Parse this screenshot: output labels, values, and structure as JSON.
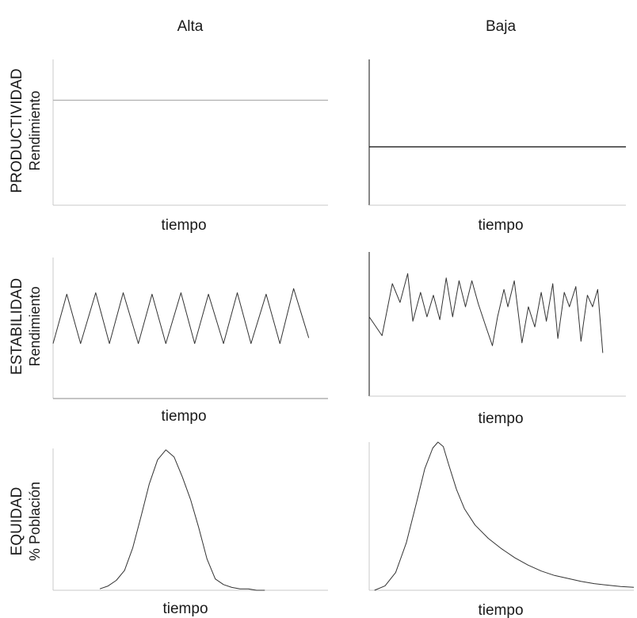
{
  "columns": {
    "alta": "Alta",
    "baja": "Baja"
  },
  "rows": {
    "productividad": {
      "title": "PRODUCTIVIDAD",
      "subtitle": "Rendimiento"
    },
    "estabilidad": {
      "title": "ESTABILIDAD",
      "subtitle": "Rendimiento"
    },
    "equidad": {
      "title": "EQUIDAD",
      "subtitle": "% Población"
    }
  },
  "xlabel": "tiempo",
  "chart_data": [
    {
      "type": "line",
      "row": "productividad",
      "column": "alta",
      "xlabel": "tiempo",
      "ylabel": "Rendimiento",
      "y_level": 0.72,
      "line_color": "#b0b0b0"
    },
    {
      "type": "line",
      "row": "productividad",
      "column": "baja",
      "xlabel": "tiempo",
      "ylabel": "Rendimiento",
      "y_level": 0.4,
      "line_color": "#111111"
    },
    {
      "type": "line",
      "row": "estabilidad",
      "column": "alta",
      "xlabel": "tiempo",
      "ylabel": "Rendimiento",
      "x": [
        0,
        0.05,
        0.1,
        0.155,
        0.205,
        0.255,
        0.31,
        0.36,
        0.41,
        0.465,
        0.515,
        0.565,
        0.62,
        0.67,
        0.72,
        0.775,
        0.825,
        0.875,
        0.93
      ],
      "y": [
        0.39,
        0.74,
        0.39,
        0.75,
        0.39,
        0.75,
        0.39,
        0.74,
        0.39,
        0.75,
        0.39,
        0.74,
        0.39,
        0.75,
        0.39,
        0.74,
        0.39,
        0.78,
        0.43
      ],
      "line_color": "#333333"
    },
    {
      "type": "line",
      "row": "estabilidad",
      "column": "baja",
      "xlabel": "tiempo",
      "ylabel": "Rendimiento",
      "x": [
        0,
        0.05,
        0.09,
        0.12,
        0.15,
        0.17,
        0.2,
        0.225,
        0.25,
        0.275,
        0.3,
        0.325,
        0.35,
        0.375,
        0.4,
        0.425,
        0.455,
        0.48,
        0.5,
        0.525,
        0.54,
        0.565,
        0.595,
        0.62,
        0.645,
        0.67,
        0.69,
        0.715,
        0.735,
        0.76,
        0.78,
        0.805,
        0.825,
        0.85,
        0.87,
        0.89,
        0.91
      ],
      "y": [
        0.55,
        0.42,
        0.78,
        0.65,
        0.85,
        0.52,
        0.72,
        0.55,
        0.7,
        0.53,
        0.82,
        0.55,
        0.8,
        0.62,
        0.8,
        0.64,
        0.48,
        0.35,
        0.55,
        0.74,
        0.62,
        0.8,
        0.37,
        0.62,
        0.48,
        0.72,
        0.52,
        0.78,
        0.4,
        0.72,
        0.62,
        0.76,
        0.38,
        0.7,
        0.62,
        0.74,
        0.3
      ],
      "line_color": "#333333"
    },
    {
      "type": "line",
      "row": "equidad",
      "column": "alta",
      "xlabel": "tiempo",
      "ylabel": "% Población",
      "x": [
        0.17,
        0.2,
        0.23,
        0.26,
        0.29,
        0.32,
        0.35,
        0.38,
        0.41,
        0.44,
        0.47,
        0.5,
        0.53,
        0.56,
        0.59,
        0.62,
        0.65,
        0.68,
        0.71,
        0.74,
        0.77
      ],
      "y": [
        0.01,
        0.03,
        0.07,
        0.14,
        0.3,
        0.52,
        0.75,
        0.92,
        0.99,
        0.94,
        0.8,
        0.64,
        0.44,
        0.22,
        0.08,
        0.04,
        0.02,
        0.01,
        0.01,
        0.0,
        0.0
      ],
      "line_color": "#333333"
    },
    {
      "type": "line",
      "row": "equidad",
      "column": "baja",
      "xlabel": "tiempo",
      "ylabel": "% Población",
      "x": [
        0.02,
        0.06,
        0.1,
        0.14,
        0.18,
        0.21,
        0.24,
        0.26,
        0.28,
        0.3,
        0.33,
        0.36,
        0.4,
        0.45,
        0.5,
        0.55,
        0.6,
        0.65,
        0.7,
        0.75,
        0.8,
        0.85,
        0.9,
        0.95,
        1.0
      ],
      "y": [
        0.0,
        0.03,
        0.12,
        0.32,
        0.6,
        0.82,
        0.96,
        1.0,
        0.97,
        0.85,
        0.68,
        0.55,
        0.44,
        0.35,
        0.28,
        0.22,
        0.17,
        0.13,
        0.1,
        0.08,
        0.06,
        0.045,
        0.035,
        0.025,
        0.02
      ],
      "line_color": "#333333"
    }
  ]
}
